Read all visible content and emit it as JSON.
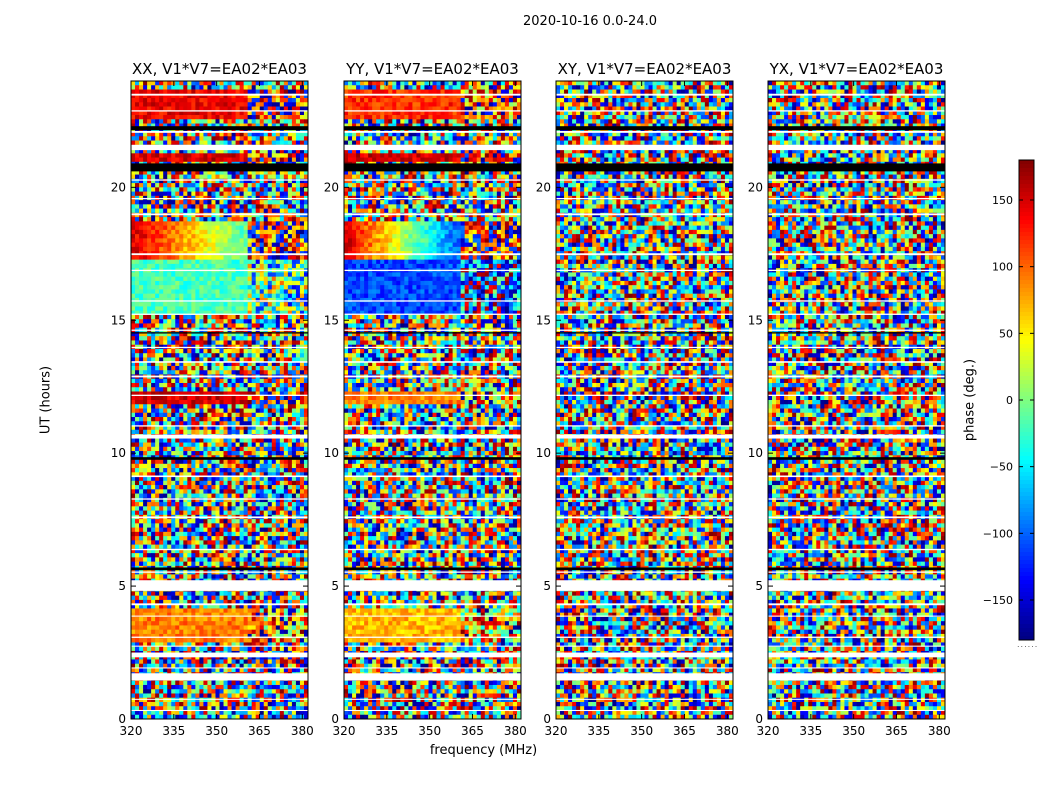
{
  "figure": {
    "suptitle": "2020-10-16 0.0-24.0",
    "xlabel": "frequency (MHz)",
    "ylabel": "UT (hours)",
    "colorbar_label": "phase (deg.)",
    "colorbar_foot": "......"
  },
  "chart_data": [
    {
      "type": "heatmap",
      "title": "XX, V1*V7=EA02*EA03",
      "xlim": [
        320,
        382
      ],
      "ylim": [
        0,
        24
      ],
      "xticks": [
        "320",
        "335",
        "350",
        "365",
        "380"
      ],
      "yticks": [
        "0",
        "5",
        "10",
        "15",
        "20"
      ],
      "vmin": -180,
      "vmax": 180,
      "coherent_bands": [
        {
          "ut": [
            15.2,
            17.3
          ],
          "phase": -20
        },
        {
          "ut": [
            17.3,
            18.8
          ],
          "phase": 150,
          "fade_to": -10
        },
        {
          "ut": [
            11.8,
            12.4
          ],
          "phase": 150
        },
        {
          "ut": [
            2.9,
            4.2
          ],
          "phase": 90
        },
        {
          "ut": [
            20.9,
            21.3
          ],
          "phase": 150
        },
        {
          "ut": [
            22.6,
            23.6
          ],
          "phase": 140
        }
      ]
    },
    {
      "type": "heatmap",
      "title": "YY, V1*V7=EA02*EA03",
      "xlim": [
        320,
        382
      ],
      "ylim": [
        0,
        24
      ],
      "xticks": [
        "320",
        "335",
        "350",
        "365",
        "380"
      ],
      "yticks": [
        "0",
        "5",
        "10",
        "15",
        "20"
      ],
      "vmin": -180,
      "vmax": 180,
      "coherent_bands": [
        {
          "ut": [
            15.2,
            17.3
          ],
          "phase": -110
        },
        {
          "ut": [
            17.3,
            18.8
          ],
          "phase": 150,
          "fade_to": -100
        },
        {
          "ut": [
            11.8,
            12.4
          ],
          "phase": 90
        },
        {
          "ut": [
            2.9,
            4.2
          ],
          "phase": 70
        },
        {
          "ut": [
            20.9,
            21.3
          ],
          "phase": 150
        },
        {
          "ut": [
            22.6,
            23.6
          ],
          "phase": 120
        }
      ]
    },
    {
      "type": "heatmap",
      "title": "XY, V1*V7=EA02*EA03",
      "xlim": [
        320,
        382
      ],
      "ylim": [
        0,
        24
      ],
      "xticks": [
        "320",
        "335",
        "350",
        "365",
        "380"
      ],
      "yticks": [
        "0",
        "5",
        "10",
        "15",
        "20"
      ],
      "vmin": -180,
      "vmax": 180,
      "coherent_bands": []
    },
    {
      "type": "heatmap",
      "title": "YX, V1*V7=EA02*EA03",
      "xlim": [
        320,
        382
      ],
      "ylim": [
        0,
        24
      ],
      "xticks": [
        "320",
        "335",
        "350",
        "365",
        "380"
      ],
      "yticks": [
        "0",
        "5",
        "10",
        "15",
        "20"
      ],
      "vmin": -180,
      "vmax": 180,
      "coherent_bands": []
    }
  ],
  "data_gaps_ut": [
    [
      0.3,
      0.34
    ],
    [
      0.72,
      0.76
    ],
    [
      1.45,
      1.72
    ],
    [
      1.9,
      1.94
    ],
    [
      2.32,
      2.5
    ],
    [
      2.72,
      2.76
    ],
    [
      3.05,
      3.1
    ],
    [
      3.85,
      3.89
    ],
    [
      4.28,
      4.35
    ],
    [
      4.82,
      5.22
    ],
    [
      5.5,
      5.55
    ],
    [
      6.35,
      6.4
    ],
    [
      7.55,
      7.62
    ],
    [
      8.25,
      8.3
    ],
    [
      9.1,
      9.16
    ],
    [
      10.55,
      10.7
    ],
    [
      11.0,
      11.05
    ],
    [
      12.15,
      12.2
    ],
    [
      12.85,
      12.92
    ],
    [
      13.4,
      13.46
    ],
    [
      13.95,
      14.0
    ],
    [
      14.6,
      14.65
    ],
    [
      15.2,
      15.25
    ],
    [
      15.7,
      15.75
    ],
    [
      16.85,
      16.9
    ],
    [
      17.45,
      17.52
    ],
    [
      18.95,
      19.02
    ],
    [
      19.55,
      19.6
    ],
    [
      20.25,
      20.3
    ],
    [
      21.4,
      21.6
    ],
    [
      22.05,
      22.12
    ],
    [
      22.85,
      22.9
    ],
    [
      23.45,
      23.52
    ]
  ],
  "flag_rows_ut": [
    [
      5.6,
      5.7
    ],
    [
      9.75,
      9.85
    ],
    [
      14.5,
      14.55
    ],
    [
      20.6,
      20.9
    ],
    [
      22.15,
      22.3
    ]
  ],
  "colorbar": {
    "vmin": -180,
    "vmax": 180,
    "ticks": [
      "150",
      "100",
      "50",
      "0",
      "−50",
      "−100",
      "−150"
    ],
    "tick_values": [
      150,
      100,
      50,
      0,
      -50,
      -100,
      -150
    ]
  }
}
